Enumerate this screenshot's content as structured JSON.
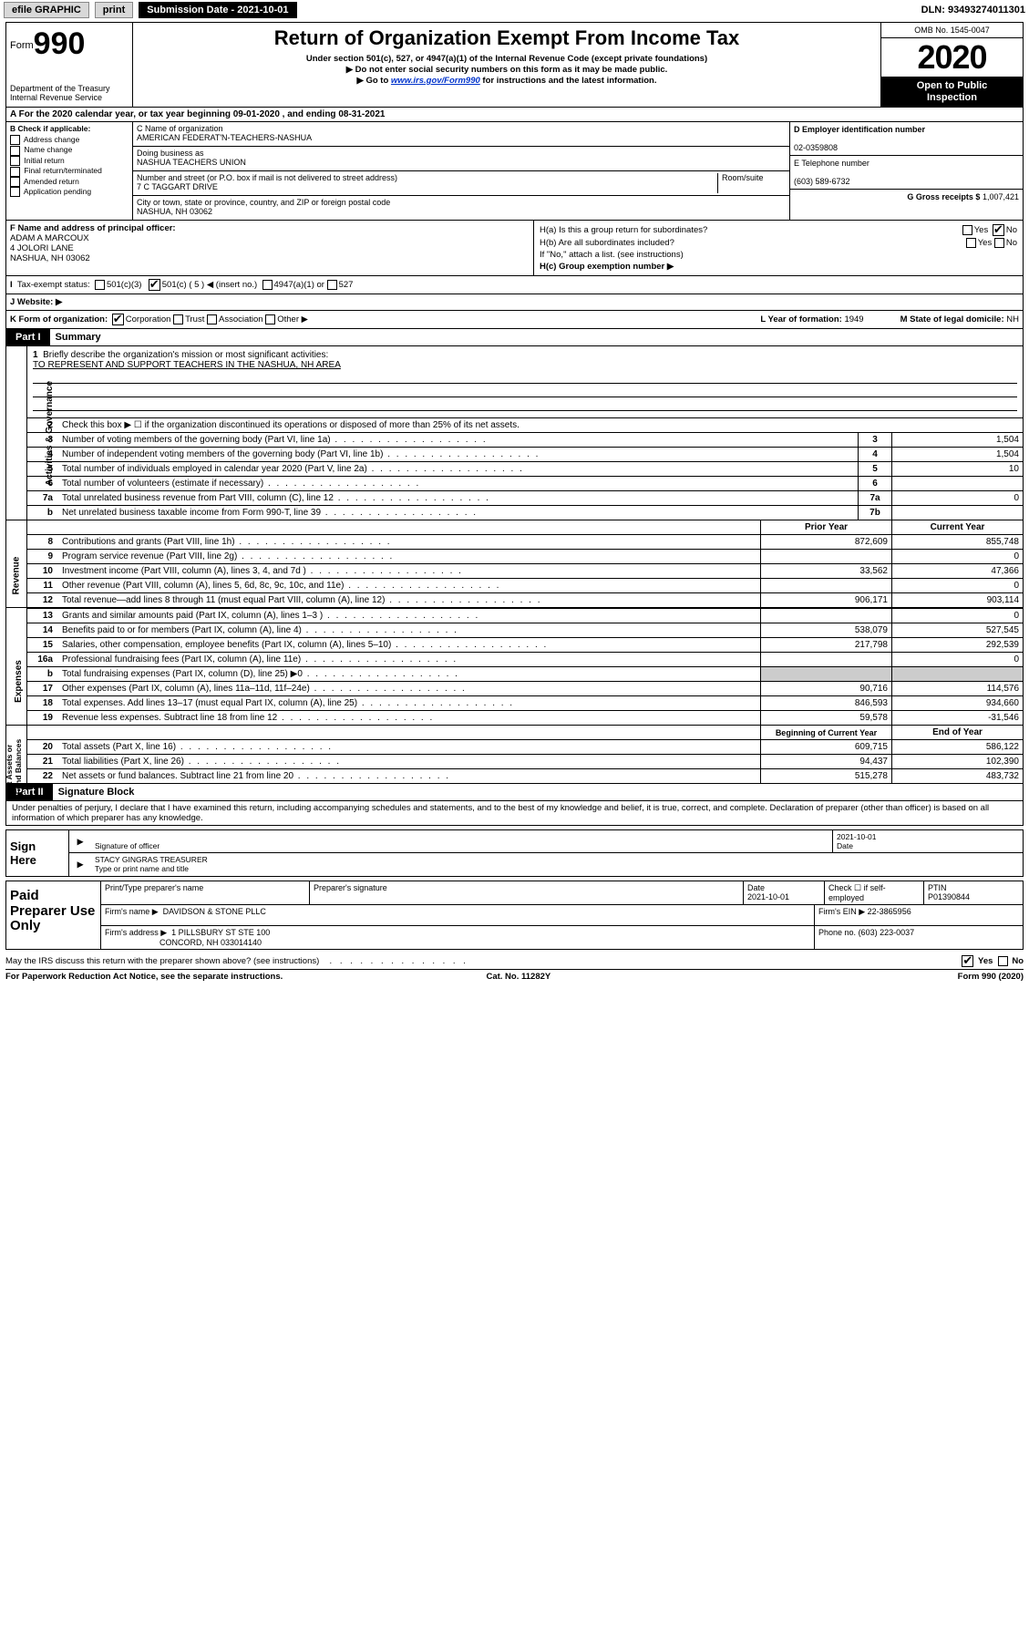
{
  "topbar": {
    "efile": "efile GRAPHIC",
    "print": "print",
    "sub_label": "Submission Date - 2021-10-01",
    "dln": "DLN: 93493274011301"
  },
  "header": {
    "form_prefix": "Form",
    "form_num": "990",
    "dept": "Department of the Treasury\nInternal Revenue Service",
    "title": "Return of Organization Exempt From Income Tax",
    "sub1": "Under section 501(c), 527, or 4947(a)(1) of the Internal Revenue Code (except private foundations)",
    "sub2": "Do not enter social security numbers on this form as it may be made public.",
    "sub3_pre": "Go to ",
    "sub3_link": "www.irs.gov/Form990",
    "sub3_post": " for instructions and the latest information.",
    "omb": "OMB No. 1545-0047",
    "year": "2020",
    "open1": "Open to Public",
    "open2": "Inspection"
  },
  "row_a": "A For the 2020 calendar year, or tax year beginning 09-01-2020   , and ending 08-31-2021",
  "col_b": {
    "title": "B Check if applicable:",
    "items": [
      "Address change",
      "Name change",
      "Initial return",
      "Final return/terminated",
      "Amended return",
      "Application pending"
    ]
  },
  "col_c": {
    "c_label": "C Name of organization",
    "c_val": "AMERICAN FEDERAT'N-TEACHERS-NASHUA",
    "dba_label": "Doing business as",
    "dba_val": "NASHUA TEACHERS UNION",
    "street_label": "Number and street (or P.O. box if mail is not delivered to street address)",
    "room_label": "Room/suite",
    "street_val": "7 C TAGGART DRIVE",
    "city_label": "City or town, state or province, country, and ZIP or foreign postal code",
    "city_val": "NASHUA, NH  03062"
  },
  "col_d": {
    "d_label": "D Employer identification number",
    "d_val": "02-0359808",
    "e_label": "E Telephone number",
    "e_val": "(603) 589-6732",
    "g_label": "G Gross receipts $",
    "g_val": "1,007,421"
  },
  "row_f": {
    "f_label": "F Name and address of principal officer:",
    "f_name": "ADAM A MARCOUX",
    "f_addr1": "4 JOLORI LANE",
    "f_addr2": "NASHUA, NH  03062",
    "ha": "H(a)  Is this a group return for subordinates?",
    "ha_yes": "Yes",
    "ha_no": "No",
    "hb": "H(b)  Are all subordinates included?",
    "hb_yes": "Yes",
    "hb_no": "No",
    "hb_note": "If \"No,\" attach a list. (see instructions)",
    "hc": "H(c)  Group exemption number ▶"
  },
  "status": {
    "label": "Tax-exempt status:",
    "o1": "501(c)(3)",
    "o2": "501(c) ( 5 ) ◀ (insert no.)",
    "o3": "4947(a)(1) or",
    "o4": "527"
  },
  "website": {
    "label": "J   Website: ▶"
  },
  "kl": {
    "k_label": "K Form of organization:",
    "k1": "Corporation",
    "k2": "Trust",
    "k3": "Association",
    "k4": "Other ▶",
    "l_label": "L Year of formation:",
    "l_val": "1949",
    "m_label": "M State of legal domicile:",
    "m_val": "NH"
  },
  "part1": {
    "part": "Part I",
    "title": "Summary",
    "vtab1": "Activities & Governance",
    "vtab2": "Revenue",
    "vtab3": "Expenses",
    "vtab4": "Net Assets or\nFund Balances",
    "l1_label": "Briefly describe the organization's mission or most significant activities:",
    "l1_val": "TO REPRESENT AND SUPPORT TEACHERS IN THE NASHUA, NH AREA",
    "l2": "Check this box ▶ ☐  if the organization discontinued its operations or disposed of more than 25% of its net assets.",
    "lines_ag": [
      {
        "n": "3",
        "t": "Number of voting members of the governing body (Part VI, line 1a)",
        "b": "3",
        "v": "1,504"
      },
      {
        "n": "4",
        "t": "Number of independent voting members of the governing body (Part VI, line 1b)",
        "b": "4",
        "v": "1,504"
      },
      {
        "n": "5",
        "t": "Total number of individuals employed in calendar year 2020 (Part V, line 2a)",
        "b": "5",
        "v": "10"
      },
      {
        "n": "6",
        "t": "Total number of volunteers (estimate if necessary)",
        "b": "6",
        "v": ""
      },
      {
        "n": "7a",
        "t": "Total unrelated business revenue from Part VIII, column (C), line 12",
        "b": "7a",
        "v": "0"
      },
      {
        "n": "b",
        "t": "Net unrelated business taxable income from Form 990-T, line 39",
        "b": "7b",
        "v": ""
      }
    ],
    "py_hdr": "Prior Year",
    "cy_hdr": "Current Year",
    "lines_rev": [
      {
        "n": "8",
        "t": "Contributions and grants (Part VIII, line 1h)",
        "py": "872,609",
        "cy": "855,748"
      },
      {
        "n": "9",
        "t": "Program service revenue (Part VIII, line 2g)",
        "py": "",
        "cy": "0"
      },
      {
        "n": "10",
        "t": "Investment income (Part VIII, column (A), lines 3, 4, and 7d )",
        "py": "33,562",
        "cy": "47,366"
      },
      {
        "n": "11",
        "t": "Other revenue (Part VIII, column (A), lines 5, 6d, 8c, 9c, 10c, and 11e)",
        "py": "",
        "cy": "0"
      },
      {
        "n": "12",
        "t": "Total revenue—add lines 8 through 11 (must equal Part VIII, column (A), line 12)",
        "py": "906,171",
        "cy": "903,114"
      }
    ],
    "lines_exp": [
      {
        "n": "13",
        "t": "Grants and similar amounts paid (Part IX, column (A), lines 1–3 )",
        "py": "",
        "cy": "0"
      },
      {
        "n": "14",
        "t": "Benefits paid to or for members (Part IX, column (A), line 4)",
        "py": "538,079",
        "cy": "527,545"
      },
      {
        "n": "15",
        "t": "Salaries, other compensation, employee benefits (Part IX, column (A), lines 5–10)",
        "py": "217,798",
        "cy": "292,539"
      },
      {
        "n": "16a",
        "t": "Professional fundraising fees (Part IX, column (A), line 11e)",
        "py": "",
        "cy": "0"
      },
      {
        "n": "b",
        "t": "Total fundraising expenses (Part IX, column (D), line 25) ▶0",
        "py": "grey",
        "cy": "grey"
      },
      {
        "n": "17",
        "t": "Other expenses (Part IX, column (A), lines 11a–11d, 11f–24e)",
        "py": "90,716",
        "cy": "114,576"
      },
      {
        "n": "18",
        "t": "Total expenses. Add lines 13–17 (must equal Part IX, column (A), line 25)",
        "py": "846,593",
        "cy": "934,660"
      },
      {
        "n": "19",
        "t": "Revenue less expenses. Subtract line 18 from line 12",
        "py": "59,578",
        "cy": "-31,546"
      }
    ],
    "by_hdr": "Beginning of Current Year",
    "ey_hdr": "End of Year",
    "lines_na": [
      {
        "n": "20",
        "t": "Total assets (Part X, line 16)",
        "py": "609,715",
        "cy": "586,122"
      },
      {
        "n": "21",
        "t": "Total liabilities (Part X, line 26)",
        "py": "94,437",
        "cy": "102,390"
      },
      {
        "n": "22",
        "t": "Net assets or fund balances. Subtract line 21 from line 20",
        "py": "515,278",
        "cy": "483,732"
      }
    ]
  },
  "part2": {
    "part": "Part II",
    "title": "Signature Block",
    "decl": "Under penalties of perjury, I declare that I have examined this return, including accompanying schedules and statements, and to the best of my knowledge and belief, it is true, correct, and complete. Declaration of preparer (other than officer) is based on all information of which preparer has any knowledge."
  },
  "sign": {
    "left": "Sign Here",
    "sig_label": "Signature of officer",
    "date_label": "Date",
    "date_val": "2021-10-01",
    "name": "STACY GINGRAS  TREASURER",
    "name_label": "Type or print name and title"
  },
  "paid": {
    "left": "Paid Preparer Use Only",
    "r1c1": "Print/Type preparer's name",
    "r1c2": "Preparer's signature",
    "r1c3": "Date",
    "r1c3v": "2021-10-01",
    "r1c4": "Check ☐ if self-employed",
    "r1c5": "PTIN",
    "r1c5v": "P01390844",
    "r2l": "Firm's name    ▶",
    "r2v": "DAVIDSON & STONE PLLC",
    "r2r": "Firm's EIN ▶",
    "r2rv": "22-3865956",
    "r3l": "Firm's address ▶",
    "r3v1": "1 PILLSBURY ST STE 100",
    "r3v2": "CONCORD, NH  033014140",
    "r3r": "Phone no.",
    "r3rv": "(603) 223-0037"
  },
  "footer": {
    "discuss": "May the IRS discuss this return with the preparer shown above? (see instructions)",
    "yes": "Yes",
    "no": "No",
    "pra": "For Paperwork Reduction Act Notice, see the separate instructions.",
    "cat": "Cat. No. 11282Y",
    "form": "Form 990 (2020)"
  }
}
